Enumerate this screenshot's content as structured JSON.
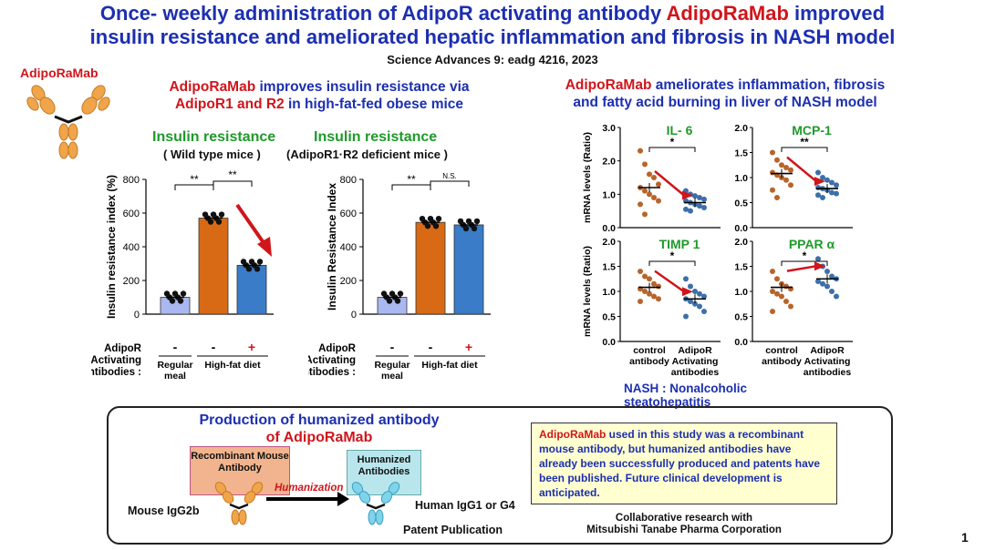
{
  "title": {
    "line1_a": "Once- weekly administration of AdipoR activating antibody ",
    "line1_b": "AdipoRaMab",
    "line1_c": " improved",
    "line2": "insulin resistance and ameliorated hepatic inflammation and fibrosis in NASH model",
    "citation": "Science Advances 9: eadg 4216, 2023"
  },
  "logo_label": "AdipoRaMab",
  "left_panel": {
    "heading_a": "AdipoRaMab",
    "heading_b": " improves insulin resistance via",
    "heading_c": "AdipoR1 and R2",
    "heading_d": " in high-fat-fed obese mice",
    "chart1_title": "Insulin resistance",
    "chart1_subtitle": "( Wild type mice )",
    "chart2_title": "Insulin resistance",
    "chart2_subtitle": "(AdipoR1·R2 deficient mice )"
  },
  "right_panel": {
    "heading_a": "AdipoRaMab",
    "heading_b": " ameliorates inflammation, fibrosis",
    "heading_c": "and fatty acid burning in liver of NASH model",
    "nash_note": "NASH : Nonalcoholic steatohepatitis"
  },
  "bottom": {
    "production_title_a": "Production of  humanized antibody",
    "production_title_b": "of AdipoRaMab",
    "recombinant_label": "Recombinant Mouse Antibody",
    "humanized_label": "Humanized Antibodies",
    "humanization": "Humanization",
    "mouse_igg": "Mouse IgG2b",
    "human_igg": "Human IgG1 or G4",
    "patent": "Patent Publication",
    "note_a": "AdipoRaMab",
    "note_b": " used in this study was a recombinant mouse antibody, but humanized antibodies have already been successfully produced and patents have been published. Future clinical development is anticipated.",
    "collab1": "Collaborative research with",
    "collab2": "Mitsubishi Tanabe Pharma Corporation",
    "page_number": "1"
  },
  "colors": {
    "title_blue": "#1c2fb0",
    "accent_red": "#d0151b",
    "green": "#1f9a2a",
    "bar_regular": "#a9b8f0",
    "bar_hfd_control": "#d86a16",
    "bar_hfd_adipo": "#3a7cc8",
    "dot_control": "#b8642a",
    "dot_adipo": "#3d6fa8"
  },
  "chart_data": [
    {
      "type": "bar",
      "title": "Insulin resistance",
      "subtitle": "( Wild type mice )",
      "ylabel": "Insulin resistance index (%)",
      "ylim": [
        0,
        800
      ],
      "yticks": [
        0,
        200,
        400,
        600,
        800
      ],
      "categories": [
        "Regular meal",
        "High-fat diet",
        "High-fat diet"
      ],
      "antibody_row_label": "AdipoR Activating antibodies :",
      "antibody": [
        "-",
        "-",
        "+"
      ],
      "group_labels": [
        "Regular meal",
        "High-fat diet"
      ],
      "values": [
        100,
        570,
        290
      ],
      "significance": [
        "**",
        "**"
      ]
    },
    {
      "type": "bar",
      "title": "Insulin resistance",
      "subtitle": "(AdipoR1·R2 deficient mice )",
      "ylabel": "Insulin Resistance Index",
      "ylim": [
        0,
        800
      ],
      "yticks": [
        0,
        200,
        400,
        600,
        800
      ],
      "categories": [
        "Regular meal",
        "High-fat diet",
        "High-fat diet"
      ],
      "antibody_row_label": "AdipoR Activating antibodies :",
      "antibody": [
        "-",
        "-",
        "+"
      ],
      "group_labels": [
        "Regular meal",
        "High-fat diet"
      ],
      "values": [
        100,
        545,
        530
      ],
      "significance": [
        "**",
        "N.S."
      ]
    },
    {
      "type": "scatter",
      "title": "IL- 6",
      "ylabel": "mRNA levels (Ratio)",
      "ylim": [
        0,
        3
      ],
      "yticks": [
        "0.0",
        "1.0",
        "2.0",
        "3.0"
      ],
      "categories": [
        "control antibody",
        "AdipoR Activating antibodies"
      ],
      "series": [
        {
          "values": [
            2.3,
            1.9,
            1.6,
            1.5,
            1.3,
            1.2,
            1.1,
            1.0,
            0.9,
            0.8,
            0.7,
            0.4
          ]
        },
        {
          "values": [
            1.1,
            1.0,
            0.95,
            0.9,
            0.85,
            0.8,
            0.75,
            0.7,
            0.65,
            0.6,
            0.55,
            0.5
          ]
        }
      ],
      "means": [
        1.2,
        0.75
      ],
      "significance": "*"
    },
    {
      "type": "scatter",
      "title": "MCP-1",
      "ylim": [
        0,
        2
      ],
      "yticks": [
        "0.0",
        "0.5",
        "1.0",
        "1.5",
        "2.0"
      ],
      "categories": [
        "control antibody",
        "AdipoR Activating antibodies"
      ],
      "series": [
        {
          "values": [
            1.5,
            1.35,
            1.25,
            1.2,
            1.15,
            1.1,
            1.05,
            1.0,
            0.95,
            0.85,
            0.75,
            0.6
          ]
        },
        {
          "values": [
            1.1,
            1.0,
            0.95,
            0.9,
            0.85,
            0.8,
            0.78,
            0.75,
            0.7,
            0.68,
            0.65,
            0.6
          ]
        }
      ],
      "means": [
        1.08,
        0.78
      ],
      "significance": "**"
    },
    {
      "type": "scatter",
      "title": "TIMP 1",
      "ylabel": "mRNA levels (Ratio)",
      "ylim": [
        0,
        2
      ],
      "yticks": [
        "0.0",
        "0.5",
        "1.0",
        "1.5",
        "2.0"
      ],
      "categories": [
        "control antibody",
        "AdipoR Activating antibodies"
      ],
      "series": [
        {
          "values": [
            1.4,
            1.3,
            1.25,
            1.15,
            1.1,
            1.05,
            1.0,
            0.95,
            0.9,
            0.85,
            0.8
          ]
        },
        {
          "values": [
            1.25,
            1.1,
            1.0,
            0.95,
            0.9,
            0.85,
            0.8,
            0.75,
            0.7,
            0.6,
            0.5
          ]
        }
      ],
      "means": [
        1.08,
        0.85
      ],
      "significance": "*"
    },
    {
      "type": "scatter",
      "title": "PPAR α",
      "ylim": [
        0,
        2
      ],
      "yticks": [
        "0.0",
        "0.5",
        "1.0",
        "1.5",
        "2.0"
      ],
      "categories": [
        "control antibody",
        "AdipoR Activating antibodies"
      ],
      "series": [
        {
          "values": [
            1.4,
            1.25,
            1.15,
            1.1,
            1.05,
            1.0,
            0.95,
            0.9,
            0.8,
            0.7,
            0.6
          ]
        },
        {
          "values": [
            1.65,
            1.5,
            1.4,
            1.3,
            1.25,
            1.2,
            1.15,
            1.1,
            1.0,
            0.9
          ]
        }
      ],
      "means": [
        1.08,
        1.25
      ],
      "significance": "*"
    }
  ]
}
